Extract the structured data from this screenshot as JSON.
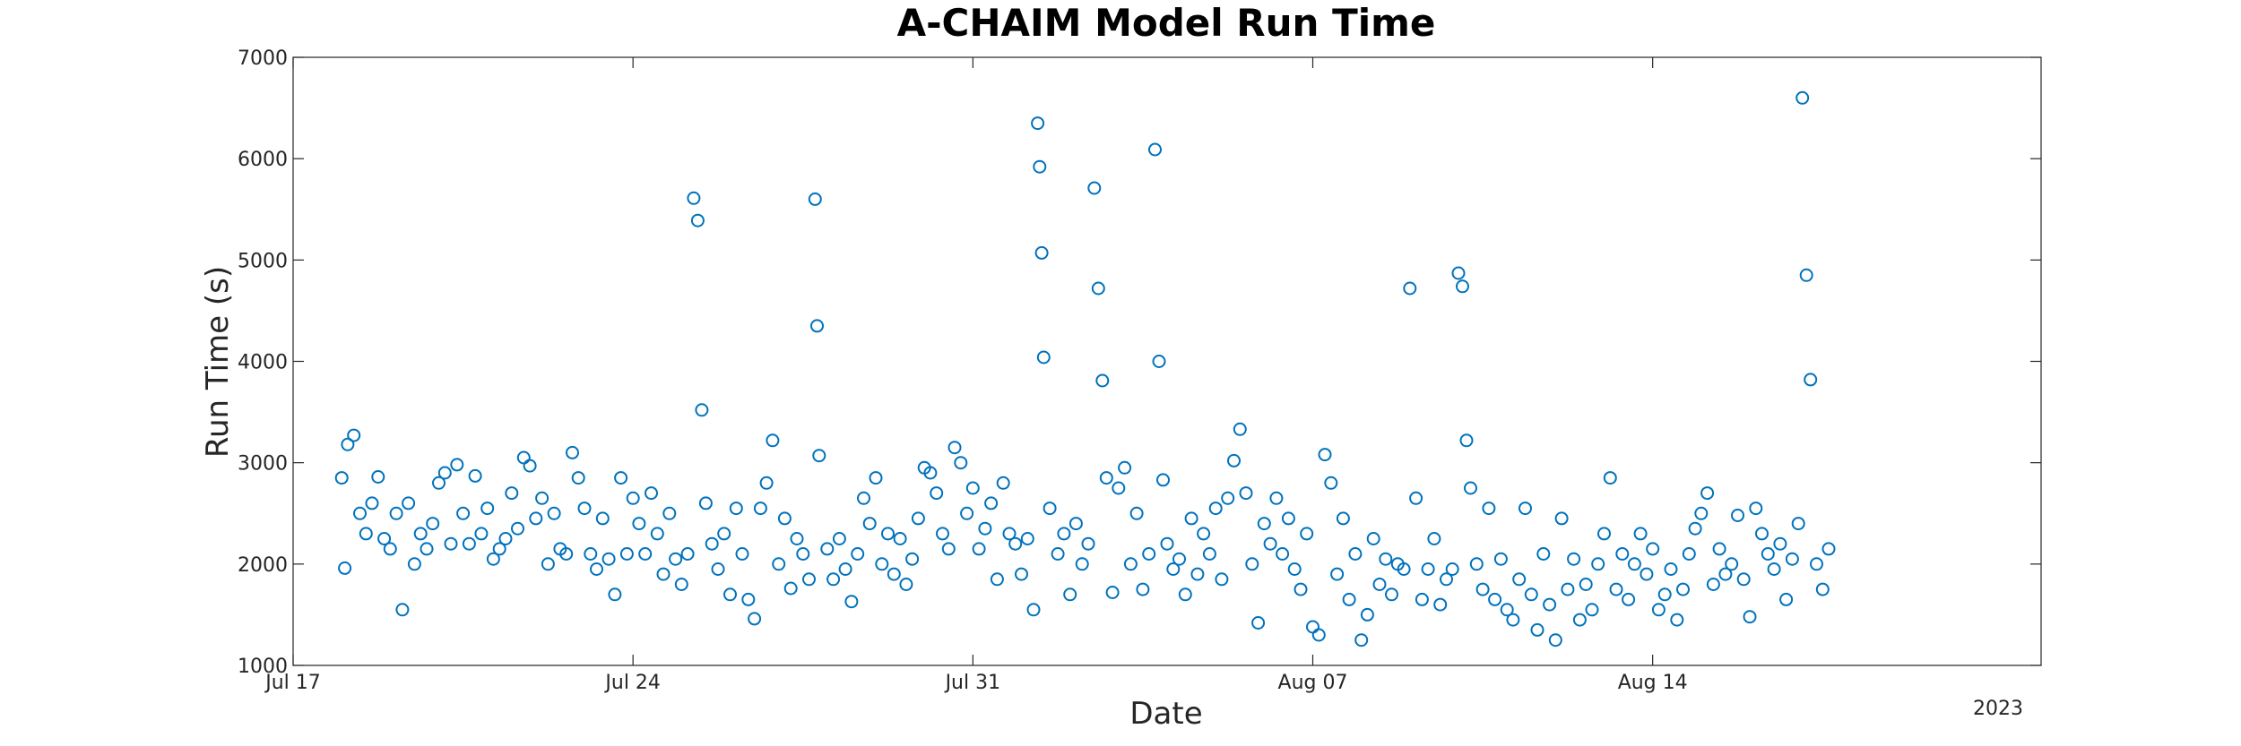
{
  "chart_data": {
    "type": "scatter",
    "title": "A-CHAIM Model Run Time",
    "xlabel": "Date",
    "ylabel": "Run Time (s)",
    "x_axis_type": "date",
    "year_label": "2023",
    "xlim": [
      "2023-07-17",
      "2023-08-22"
    ],
    "ylim": [
      1000,
      7000
    ],
    "x_ticks": [
      {
        "date": "2023-07-17",
        "label": "Jul 17"
      },
      {
        "date": "2023-07-24",
        "label": "Jul 24"
      },
      {
        "date": "2023-07-31",
        "label": "Jul 31"
      },
      {
        "date": "2023-08-07",
        "label": "Aug 07"
      },
      {
        "date": "2023-08-14",
        "label": "Aug 14"
      }
    ],
    "y_ticks": [
      1000,
      2000,
      3000,
      4000,
      5000,
      6000,
      7000
    ],
    "marker": "open-circle",
    "marker_color": "#0072BD",
    "grid": false,
    "series": [
      {
        "points": [
          [
            "2023-07-18 00:00",
            2850
          ],
          [
            "2023-07-18 03:00",
            3180
          ],
          [
            "2023-07-18 06:00",
            3270
          ],
          [
            "2023-07-18 09:00",
            2500
          ],
          [
            "2023-07-18 12:00",
            2300
          ],
          [
            "2023-07-18 15:00",
            2600
          ],
          [
            "2023-07-18 18:00",
            2860
          ],
          [
            "2023-07-18 21:00",
            2250
          ],
          [
            "2023-07-18 01:30",
            1960
          ],
          [
            "2023-07-19 00:00",
            2150
          ],
          [
            "2023-07-19 03:00",
            2500
          ],
          [
            "2023-07-19 06:00",
            1550
          ],
          [
            "2023-07-19 09:00",
            2600
          ],
          [
            "2023-07-19 12:00",
            2000
          ],
          [
            "2023-07-19 15:00",
            2300
          ],
          [
            "2023-07-19 18:00",
            2150
          ],
          [
            "2023-07-19 21:00",
            2400
          ],
          [
            "2023-07-20 00:00",
            2800
          ],
          [
            "2023-07-20 03:00",
            2900
          ],
          [
            "2023-07-20 06:00",
            2200
          ],
          [
            "2023-07-20 09:00",
            2980
          ],
          [
            "2023-07-20 12:00",
            2500
          ],
          [
            "2023-07-20 15:00",
            2200
          ],
          [
            "2023-07-20 18:00",
            2870
          ],
          [
            "2023-07-20 21:00",
            2300
          ],
          [
            "2023-07-21 00:00",
            2550
          ],
          [
            "2023-07-21 03:00",
            2050
          ],
          [
            "2023-07-21 06:00",
            2150
          ],
          [
            "2023-07-21 09:00",
            2250
          ],
          [
            "2023-07-21 12:00",
            2700
          ],
          [
            "2023-07-21 15:00",
            2350
          ],
          [
            "2023-07-21 18:00",
            3050
          ],
          [
            "2023-07-21 21:00",
            2970
          ],
          [
            "2023-07-22 00:00",
            2450
          ],
          [
            "2023-07-22 03:00",
            2650
          ],
          [
            "2023-07-22 06:00",
            2000
          ],
          [
            "2023-07-22 09:00",
            2500
          ],
          [
            "2023-07-22 12:00",
            2150
          ],
          [
            "2023-07-22 15:00",
            2100
          ],
          [
            "2023-07-22 18:00",
            3100
          ],
          [
            "2023-07-22 21:00",
            2850
          ],
          [
            "2023-07-23 00:00",
            2550
          ],
          [
            "2023-07-23 03:00",
            2100
          ],
          [
            "2023-07-23 06:00",
            1950
          ],
          [
            "2023-07-23 09:00",
            2450
          ],
          [
            "2023-07-23 12:00",
            2050
          ],
          [
            "2023-07-23 15:00",
            1700
          ],
          [
            "2023-07-23 18:00",
            2850
          ],
          [
            "2023-07-23 21:00",
            2100
          ],
          [
            "2023-07-24 00:00",
            2650
          ],
          [
            "2023-07-24 03:00",
            2400
          ],
          [
            "2023-07-24 06:00",
            2100
          ],
          [
            "2023-07-24 09:00",
            2700
          ],
          [
            "2023-07-24 12:00",
            2300
          ],
          [
            "2023-07-24 15:00",
            1900
          ],
          [
            "2023-07-24 18:00",
            2500
          ],
          [
            "2023-07-24 21:00",
            2050
          ],
          [
            "2023-07-25 00:00",
            1800
          ],
          [
            "2023-07-25 03:00",
            2100
          ],
          [
            "2023-07-25 06:00",
            5610
          ],
          [
            "2023-07-25 08:00",
            5390
          ],
          [
            "2023-07-25 10:00",
            3520
          ],
          [
            "2023-07-25 12:00",
            2600
          ],
          [
            "2023-07-25 15:00",
            2200
          ],
          [
            "2023-07-25 18:00",
            1950
          ],
          [
            "2023-07-25 21:00",
            2300
          ],
          [
            "2023-07-26 00:00",
            1700
          ],
          [
            "2023-07-26 03:00",
            2550
          ],
          [
            "2023-07-26 06:00",
            2100
          ],
          [
            "2023-07-26 09:00",
            1650
          ],
          [
            "2023-07-26 12:00",
            1460
          ],
          [
            "2023-07-26 15:00",
            2550
          ],
          [
            "2023-07-26 18:00",
            2800
          ],
          [
            "2023-07-26 21:00",
            3220
          ],
          [
            "2023-07-27 00:00",
            2000
          ],
          [
            "2023-07-27 03:00",
            2450
          ],
          [
            "2023-07-27 06:00",
            1760
          ],
          [
            "2023-07-27 09:00",
            2250
          ],
          [
            "2023-07-27 12:00",
            2100
          ],
          [
            "2023-07-27 15:00",
            1850
          ],
          [
            "2023-07-27 18:00",
            5600
          ],
          [
            "2023-07-27 19:00",
            4350
          ],
          [
            "2023-07-27 20:00",
            3070
          ],
          [
            "2023-07-28 00:00",
            2150
          ],
          [
            "2023-07-28 03:00",
            1850
          ],
          [
            "2023-07-28 06:00",
            2250
          ],
          [
            "2023-07-28 09:00",
            1950
          ],
          [
            "2023-07-28 12:00",
            1630
          ],
          [
            "2023-07-28 15:00",
            2100
          ],
          [
            "2023-07-28 18:00",
            2650
          ],
          [
            "2023-07-28 21:00",
            2400
          ],
          [
            "2023-07-29 00:00",
            2850
          ],
          [
            "2023-07-29 03:00",
            2000
          ],
          [
            "2023-07-29 06:00",
            2300
          ],
          [
            "2023-07-29 09:00",
            1900
          ],
          [
            "2023-07-29 12:00",
            2250
          ],
          [
            "2023-07-29 15:00",
            1800
          ],
          [
            "2023-07-29 18:00",
            2050
          ],
          [
            "2023-07-29 21:00",
            2450
          ],
          [
            "2023-07-30 00:00",
            2950
          ],
          [
            "2023-07-30 03:00",
            2900
          ],
          [
            "2023-07-30 06:00",
            2700
          ],
          [
            "2023-07-30 09:00",
            2300
          ],
          [
            "2023-07-30 12:00",
            2150
          ],
          [
            "2023-07-30 15:00",
            3150
          ],
          [
            "2023-07-30 18:00",
            3000
          ],
          [
            "2023-07-30 21:00",
            2500
          ],
          [
            "2023-07-31 00:00",
            2750
          ],
          [
            "2023-07-31 03:00",
            2150
          ],
          [
            "2023-07-31 06:00",
            2350
          ],
          [
            "2023-07-31 09:00",
            2600
          ],
          [
            "2023-07-31 12:00",
            1850
          ],
          [
            "2023-07-31 15:00",
            2800
          ],
          [
            "2023-07-31 18:00",
            2300
          ],
          [
            "2023-07-31 21:00",
            2200
          ],
          [
            "2023-08-01 00:00",
            1900
          ],
          [
            "2023-08-01 03:00",
            2250
          ],
          [
            "2023-08-01 06:00",
            1550
          ],
          [
            "2023-08-01 08:00",
            6350
          ],
          [
            "2023-08-01 09:00",
            5920
          ],
          [
            "2023-08-01 10:00",
            5070
          ],
          [
            "2023-08-01 11:00",
            4040
          ],
          [
            "2023-08-01 14:00",
            2550
          ],
          [
            "2023-08-01 18:00",
            2100
          ],
          [
            "2023-08-01 21:00",
            2300
          ],
          [
            "2023-08-02 00:00",
            1700
          ],
          [
            "2023-08-02 03:00",
            2400
          ],
          [
            "2023-08-02 06:00",
            2000
          ],
          [
            "2023-08-02 09:00",
            2200
          ],
          [
            "2023-08-02 12:00",
            5710
          ],
          [
            "2023-08-02 14:00",
            4720
          ],
          [
            "2023-08-02 16:00",
            3810
          ],
          [
            "2023-08-02 18:00",
            2850
          ],
          [
            "2023-08-02 21:00",
            1720
          ],
          [
            "2023-08-03 00:00",
            2750
          ],
          [
            "2023-08-03 03:00",
            2950
          ],
          [
            "2023-08-03 06:00",
            2000
          ],
          [
            "2023-08-03 09:00",
            2500
          ],
          [
            "2023-08-03 12:00",
            1750
          ],
          [
            "2023-08-03 15:00",
            2100
          ],
          [
            "2023-08-03 18:00",
            6090
          ],
          [
            "2023-08-03 20:00",
            4000
          ],
          [
            "2023-08-03 22:00",
            2830
          ],
          [
            "2023-08-04 00:00",
            2200
          ],
          [
            "2023-08-04 03:00",
            1950
          ],
          [
            "2023-08-04 06:00",
            2050
          ],
          [
            "2023-08-04 09:00",
            1700
          ],
          [
            "2023-08-04 12:00",
            2450
          ],
          [
            "2023-08-04 15:00",
            1900
          ],
          [
            "2023-08-04 18:00",
            2300
          ],
          [
            "2023-08-04 21:00",
            2100
          ],
          [
            "2023-08-05 00:00",
            2550
          ],
          [
            "2023-08-05 03:00",
            1850
          ],
          [
            "2023-08-05 06:00",
            2650
          ],
          [
            "2023-08-05 09:00",
            3020
          ],
          [
            "2023-08-05 12:00",
            3330
          ],
          [
            "2023-08-05 15:00",
            2700
          ],
          [
            "2023-08-05 18:00",
            2000
          ],
          [
            "2023-08-05 21:00",
            1420
          ],
          [
            "2023-08-06 00:00",
            2400
          ],
          [
            "2023-08-06 03:00",
            2200
          ],
          [
            "2023-08-06 06:00",
            2650
          ],
          [
            "2023-08-06 09:00",
            2100
          ],
          [
            "2023-08-06 12:00",
            2450
          ],
          [
            "2023-08-06 15:00",
            1950
          ],
          [
            "2023-08-06 18:00",
            1750
          ],
          [
            "2023-08-06 21:00",
            2300
          ],
          [
            "2023-08-07 00:00",
            1380
          ],
          [
            "2023-08-07 03:00",
            1300
          ],
          [
            "2023-08-07 06:00",
            3080
          ],
          [
            "2023-08-07 09:00",
            2800
          ],
          [
            "2023-08-07 12:00",
            1900
          ],
          [
            "2023-08-07 15:00",
            2450
          ],
          [
            "2023-08-07 18:00",
            1650
          ],
          [
            "2023-08-07 21:00",
            2100
          ],
          [
            "2023-08-08 00:00",
            1250
          ],
          [
            "2023-08-08 03:00",
            1500
          ],
          [
            "2023-08-08 06:00",
            2250
          ],
          [
            "2023-08-08 09:00",
            1800
          ],
          [
            "2023-08-08 12:00",
            2050
          ],
          [
            "2023-08-08 15:00",
            1700
          ],
          [
            "2023-08-08 18:00",
            2000
          ],
          [
            "2023-08-08 21:00",
            1950
          ],
          [
            "2023-08-09 00:00",
            4720
          ],
          [
            "2023-08-09 03:00",
            2650
          ],
          [
            "2023-08-09 06:00",
            1650
          ],
          [
            "2023-08-09 09:00",
            1950
          ],
          [
            "2023-08-09 12:00",
            2250
          ],
          [
            "2023-08-09 15:00",
            1600
          ],
          [
            "2023-08-09 18:00",
            1850
          ],
          [
            "2023-08-09 21:00",
            1950
          ],
          [
            "2023-08-10 00:00",
            4870
          ],
          [
            "2023-08-10 02:00",
            4740
          ],
          [
            "2023-08-10 04:00",
            3220
          ],
          [
            "2023-08-10 06:00",
            2750
          ],
          [
            "2023-08-10 09:00",
            2000
          ],
          [
            "2023-08-10 12:00",
            1750
          ],
          [
            "2023-08-10 15:00",
            2550
          ],
          [
            "2023-08-10 18:00",
            1650
          ],
          [
            "2023-08-10 21:00",
            2050
          ],
          [
            "2023-08-11 00:00",
            1550
          ],
          [
            "2023-08-11 03:00",
            1450
          ],
          [
            "2023-08-11 06:00",
            1850
          ],
          [
            "2023-08-11 09:00",
            2550
          ],
          [
            "2023-08-11 12:00",
            1700
          ],
          [
            "2023-08-11 15:00",
            1350
          ],
          [
            "2023-08-11 18:00",
            2100
          ],
          [
            "2023-08-11 21:00",
            1600
          ],
          [
            "2023-08-12 00:00",
            1250
          ],
          [
            "2023-08-12 03:00",
            2450
          ],
          [
            "2023-08-12 06:00",
            1750
          ],
          [
            "2023-08-12 09:00",
            2050
          ],
          [
            "2023-08-12 12:00",
            1450
          ],
          [
            "2023-08-12 15:00",
            1800
          ],
          [
            "2023-08-12 18:00",
            1550
          ],
          [
            "2023-08-12 21:00",
            2000
          ],
          [
            "2023-08-13 00:00",
            2300
          ],
          [
            "2023-08-13 03:00",
            2850
          ],
          [
            "2023-08-13 06:00",
            1750
          ],
          [
            "2023-08-13 09:00",
            2100
          ],
          [
            "2023-08-13 12:00",
            1650
          ],
          [
            "2023-08-13 15:00",
            2000
          ],
          [
            "2023-08-13 18:00",
            2300
          ],
          [
            "2023-08-13 21:00",
            1900
          ],
          [
            "2023-08-14 00:00",
            2150
          ],
          [
            "2023-08-14 03:00",
            1550
          ],
          [
            "2023-08-14 06:00",
            1700
          ],
          [
            "2023-08-14 09:00",
            1950
          ],
          [
            "2023-08-14 12:00",
            1450
          ],
          [
            "2023-08-14 15:00",
            1750
          ],
          [
            "2023-08-14 18:00",
            2100
          ],
          [
            "2023-08-14 21:00",
            2350
          ],
          [
            "2023-08-15 00:00",
            2500
          ],
          [
            "2023-08-15 03:00",
            2700
          ],
          [
            "2023-08-15 06:00",
            1800
          ],
          [
            "2023-08-15 09:00",
            2150
          ],
          [
            "2023-08-15 12:00",
            1900
          ],
          [
            "2023-08-15 15:00",
            2000
          ],
          [
            "2023-08-15 18:00",
            2480
          ],
          [
            "2023-08-15 21:00",
            1850
          ],
          [
            "2023-08-16 00:00",
            1480
          ],
          [
            "2023-08-16 03:00",
            2550
          ],
          [
            "2023-08-16 06:00",
            2300
          ],
          [
            "2023-08-16 09:00",
            2100
          ],
          [
            "2023-08-16 12:00",
            1950
          ],
          [
            "2023-08-16 15:00",
            2200
          ],
          [
            "2023-08-16 18:00",
            1650
          ],
          [
            "2023-08-16 21:00",
            2050
          ],
          [
            "2023-08-17 00:00",
            2400
          ],
          [
            "2023-08-17 02:00",
            6600
          ],
          [
            "2023-08-17 04:00",
            4850
          ],
          [
            "2023-08-17 06:00",
            3820
          ],
          [
            "2023-08-17 09:00",
            2000
          ],
          [
            "2023-08-17 12:00",
            1750
          ],
          [
            "2023-08-17 15:00",
            2150
          ]
        ]
      }
    ]
  }
}
